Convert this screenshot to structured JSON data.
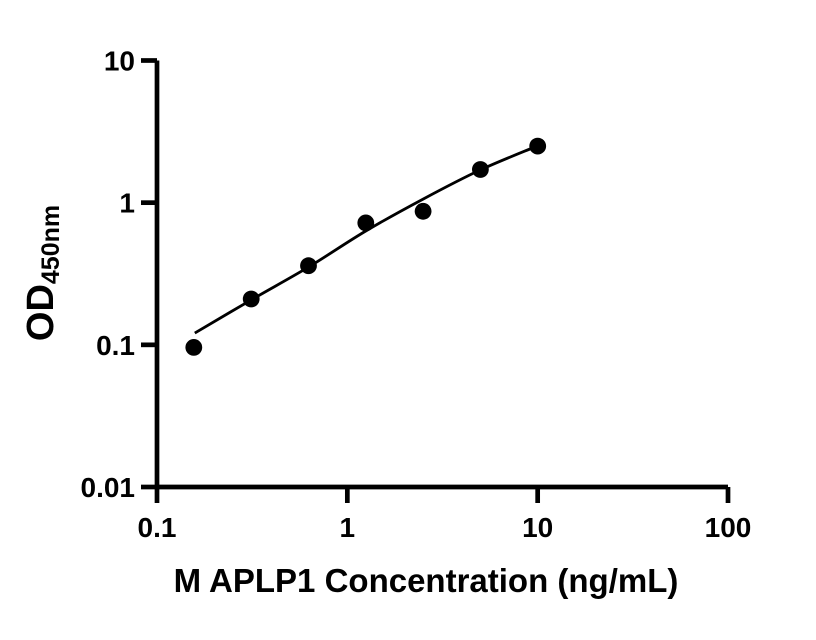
{
  "page": {
    "background_color": "#ffffff",
    "foreground_color": "#000000"
  },
  "chart_data": {
    "type": "scatter",
    "title": "",
    "xlabel": "M APLP1 Concentration (ng/mL)",
    "ylabel": "OD",
    "ylabel_subscript": "450nm",
    "x_scale": "log",
    "y_scale": "log",
    "xlim": [
      0.1,
      100
    ],
    "ylim": [
      0.01,
      10
    ],
    "x_ticks": [
      {
        "value": 0.1,
        "label": "0.1"
      },
      {
        "value": 1,
        "label": "1"
      },
      {
        "value": 10,
        "label": "10"
      },
      {
        "value": 100,
        "label": "100"
      }
    ],
    "y_ticks": [
      {
        "value": 0.01,
        "label": "0.01"
      },
      {
        "value": 0.1,
        "label": "0.1"
      },
      {
        "value": 1,
        "label": "1"
      },
      {
        "value": 10,
        "label": "10"
      }
    ],
    "grid": false,
    "legend": "none",
    "axis_color": "#000000",
    "series": [
      {
        "name": "standard-points",
        "type": "scatter",
        "marker": "filled-circle",
        "color": "#000000",
        "x": [
          0.156,
          0.3125,
          0.625,
          1.25,
          2.5,
          5,
          10
        ],
        "y": [
          0.096,
          0.21,
          0.36,
          0.72,
          0.87,
          1.71,
          2.5
        ]
      },
      {
        "name": "fitted-curve",
        "type": "line",
        "color": "#000000",
        "x": [
          0.158,
          0.3125,
          0.625,
          1.25,
          2.5,
          5,
          10
        ],
        "y": [
          0.121,
          0.207,
          0.352,
          0.632,
          1.06,
          1.7,
          2.51
        ]
      }
    ]
  }
}
